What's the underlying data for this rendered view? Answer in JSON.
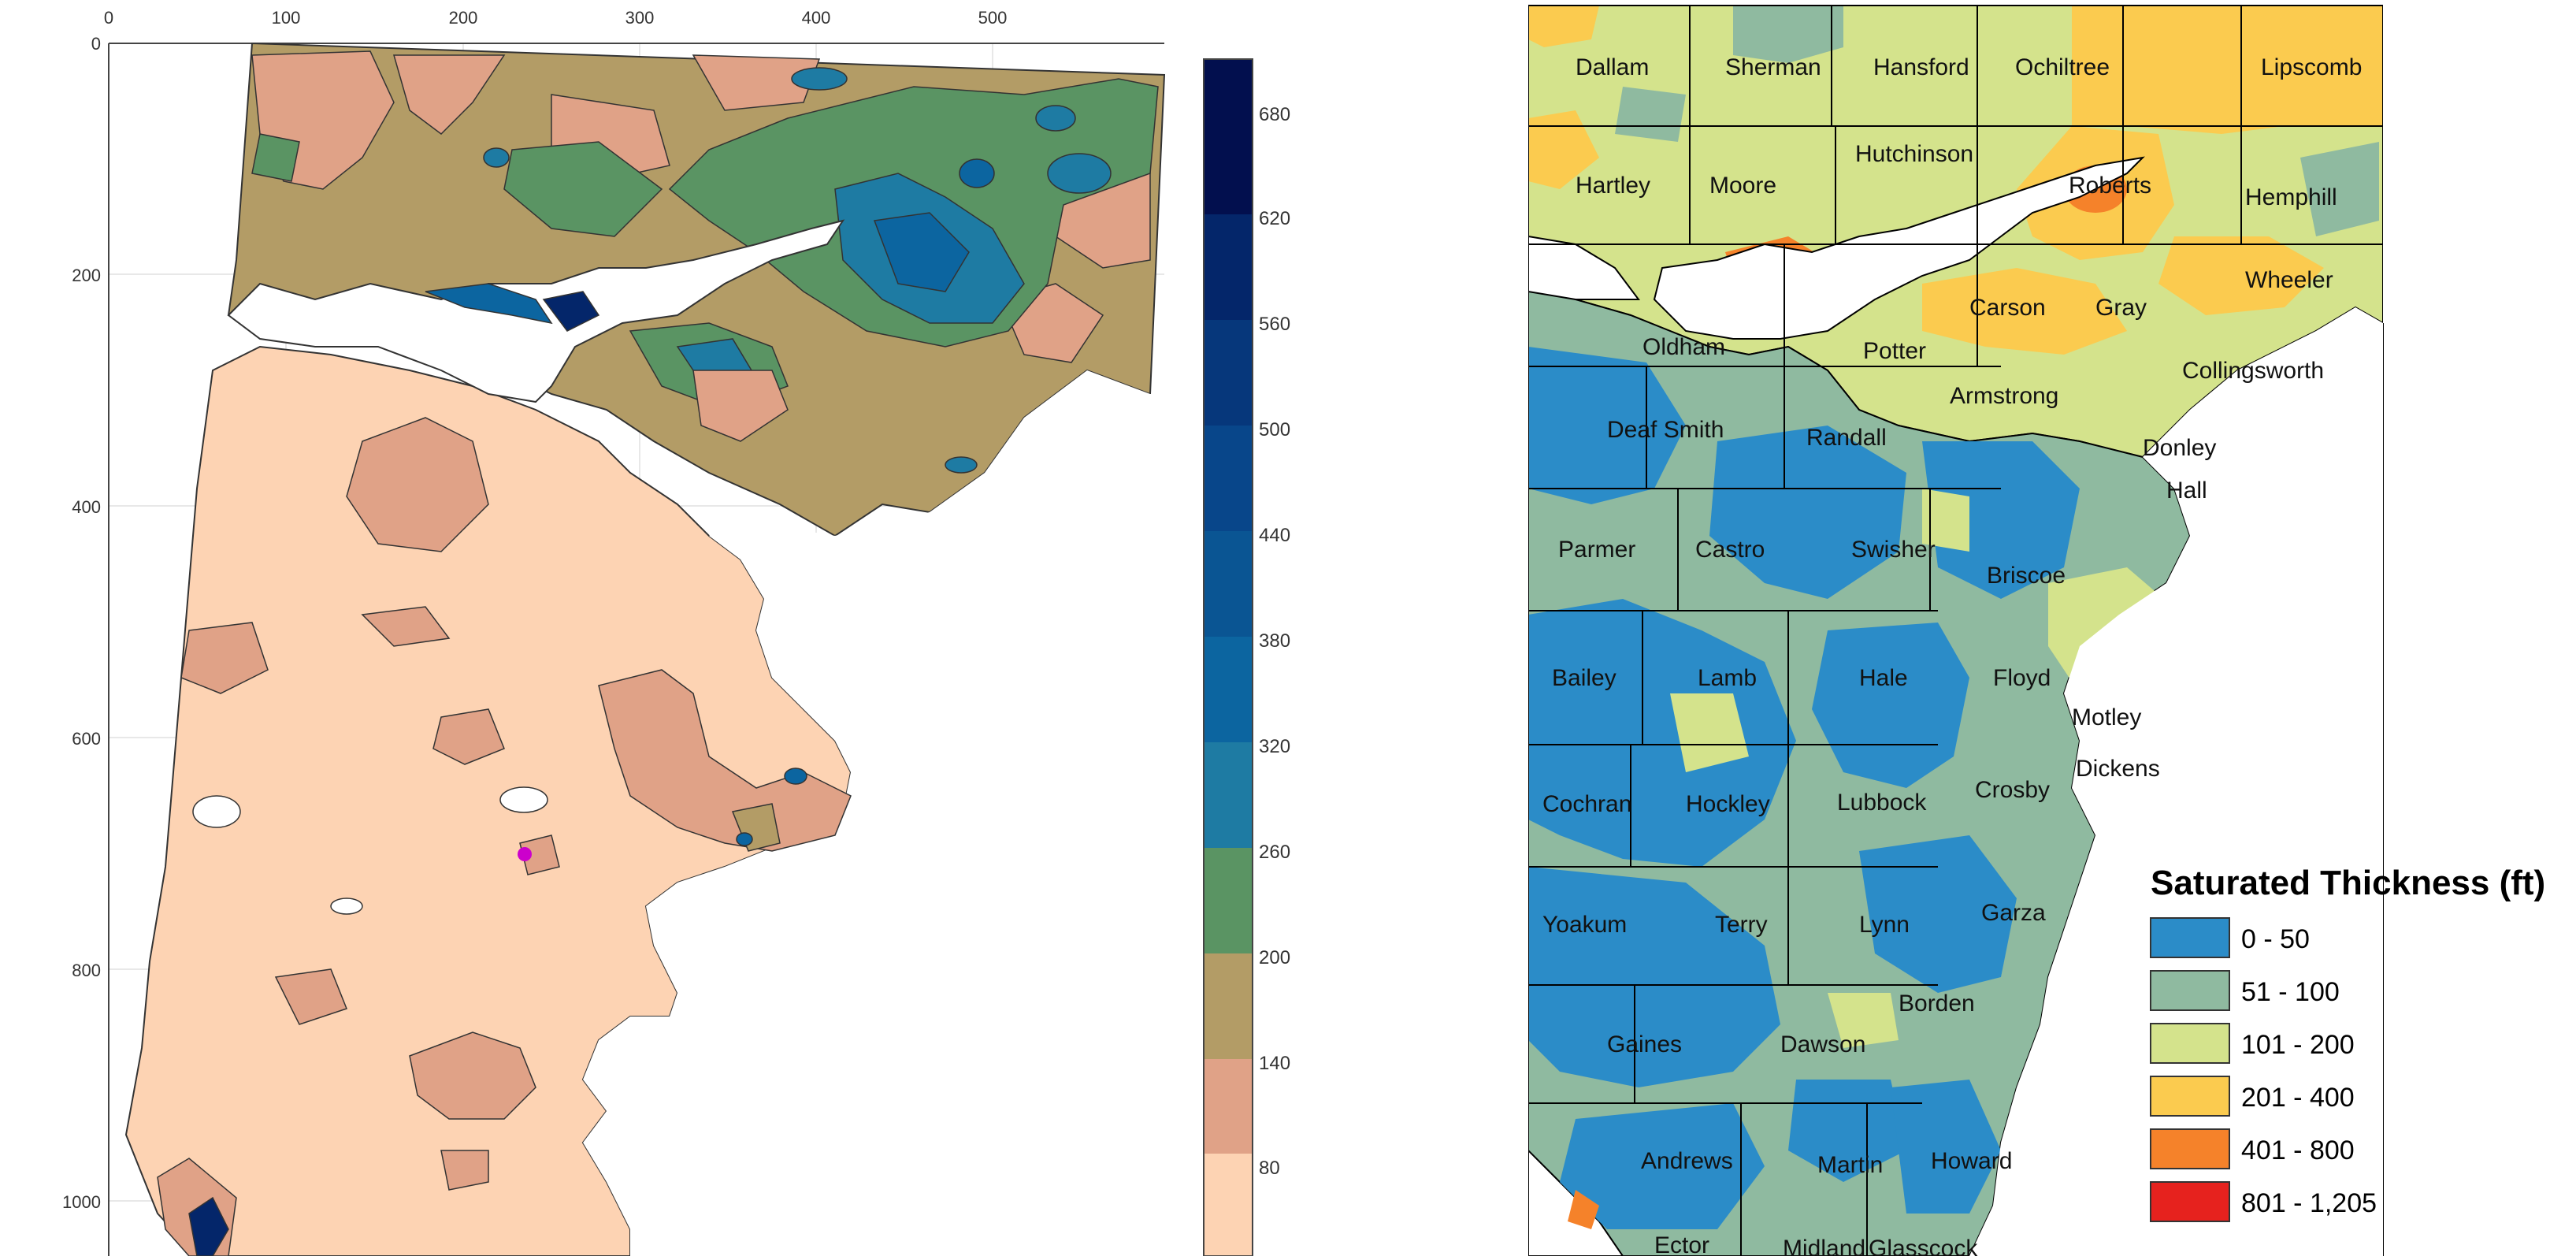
{
  "left_map": {
    "x_ticks": [
      "0",
      "100",
      "200",
      "300",
      "400",
      "500"
    ],
    "y_ticks": [
      "0",
      "200",
      "400",
      "600",
      "800",
      "1000"
    ],
    "colorbar": {
      "labels": [
        "80",
        "140",
        "200",
        "260",
        "320",
        "380",
        "440",
        "500",
        "560",
        "620",
        "680"
      ],
      "colors": [
        "#fdd3b3",
        "#e0a287",
        "#b39c66",
        "#5a9463",
        "#1e7ba3",
        "#0c65a0",
        "#0a5593",
        "#08468a",
        "#06377b",
        "#04266a",
        "#020f4e"
      ]
    },
    "marker_color": "#cc00cc"
  },
  "right_map": {
    "counties": [
      "Dallam",
      "Sherman",
      "Hansford",
      "Ochiltree",
      "Lipscomb",
      "Hartley",
      "Moore",
      "Hutchinson",
      "Roberts",
      "Hemphill",
      "Carson",
      "Gray",
      "Wheeler",
      "Oldham",
      "Potter",
      "Armstrong",
      "Collingsworth",
      "Deaf Smith",
      "Randall",
      "Donley",
      "Hall",
      "Parmer",
      "Castro",
      "Swisher",
      "Briscoe",
      "Bailey",
      "Lamb",
      "Hale",
      "Floyd",
      "Motley",
      "Dickens",
      "Cochran",
      "Hockley",
      "Lubbock",
      "Crosby",
      "Yoakum",
      "Terry",
      "Lynn",
      "Garza",
      "Borden",
      "Gaines",
      "Dawson",
      "Andrews",
      "Martin",
      "Howard",
      "Ector",
      "Midland",
      "Glasscock"
    ],
    "legend": {
      "title": "Saturated Thickness (ft)",
      "items": [
        {
          "label": "0 - 50",
          "color": "#2b8cc8"
        },
        {
          "label": "51 - 100",
          "color": "#8fbaa0"
        },
        {
          "label": "101 - 200",
          "color": "#d4e38c"
        },
        {
          "label": "201 - 400",
          "color": "#fbcb4f"
        },
        {
          "label": "401 - 800",
          "color": "#f5822a"
        },
        {
          "label": "801 - 1,205",
          "color": "#e6221e"
        }
      ]
    }
  }
}
